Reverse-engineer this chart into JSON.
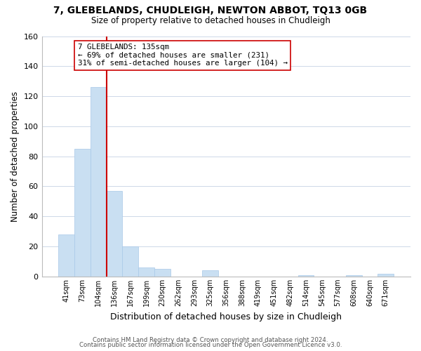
{
  "title": "7, GLEBELANDS, CHUDLEIGH, NEWTON ABBOT, TQ13 0GB",
  "subtitle": "Size of property relative to detached houses in Chudleigh",
  "xlabel": "Distribution of detached houses by size in Chudleigh",
  "ylabel": "Number of detached properties",
  "bar_labels": [
    "41sqm",
    "73sqm",
    "104sqm",
    "136sqm",
    "167sqm",
    "199sqm",
    "230sqm",
    "262sqm",
    "293sqm",
    "325sqm",
    "356sqm",
    "388sqm",
    "419sqm",
    "451sqm",
    "482sqm",
    "514sqm",
    "545sqm",
    "577sqm",
    "608sqm",
    "640sqm",
    "671sqm"
  ],
  "bar_values": [
    28,
    85,
    126,
    57,
    20,
    6,
    5,
    0,
    0,
    4,
    0,
    0,
    0,
    0,
    0,
    1,
    0,
    0,
    1,
    0,
    2
  ],
  "bar_color": "#c9dff2",
  "bar_edge_color": "#a8c8e8",
  "marker_color": "#cc0000",
  "ylim": [
    0,
    160
  ],
  "yticks": [
    0,
    20,
    40,
    60,
    80,
    100,
    120,
    140,
    160
  ],
  "annotation_line1": "7 GLEBELANDS: 135sqm",
  "annotation_line2": "← 69% of detached houses are smaller (231)",
  "annotation_line3": "31% of semi-detached houses are larger (104) →",
  "annotation_box_color": "#ffffff",
  "annotation_box_edge": "#cc0000",
  "footer_line1": "Contains HM Land Registry data © Crown copyright and database right 2024.",
  "footer_line2": "Contains public sector information licensed under the Open Government Licence v3.0.",
  "background_color": "#ffffff",
  "grid_color": "#cdd8e8"
}
